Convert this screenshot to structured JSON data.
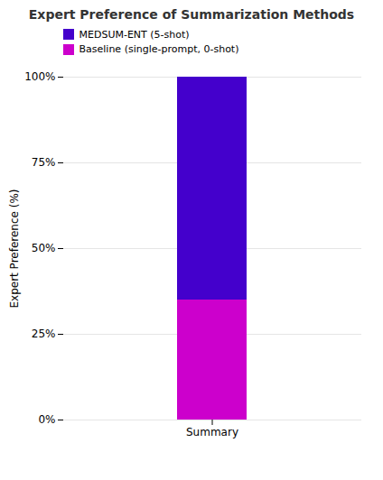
{
  "chart_data": {
    "type": "bar",
    "title": "Expert Preference of Summarization Methods",
    "categories": [
      "Summary"
    ],
    "series": [
      {
        "name": "Baseline (single-prompt, 0-shot)",
        "color": "#cc00cc",
        "values": [
          35
        ]
      },
      {
        "name": "MEDSUM-ENT (5-shot)",
        "color": "#4400cc",
        "values": [
          65
        ]
      }
    ],
    "stacked": true,
    "ylabel": "Expert Preference (%)",
    "ylim": [
      0,
      100
    ],
    "yticks": [
      {
        "value": 0,
        "label": "0%"
      },
      {
        "value": 25,
        "label": "25%"
      },
      {
        "value": 50,
        "label": "50%"
      },
      {
        "value": 75,
        "label": "75%"
      },
      {
        "value": 100,
        "label": "100%"
      }
    ],
    "grid": true,
    "legend": "upper left"
  }
}
